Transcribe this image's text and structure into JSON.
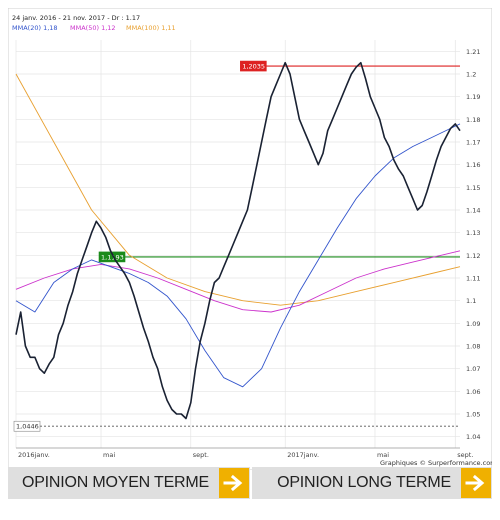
{
  "header": {
    "period": "24 janv. 2016 - 21 nov. 2017 - Dr : 1.17",
    "legend": [
      {
        "text": "MMA(20)  1,18",
        "color": "#3355cc"
      },
      {
        "text": "MMA(50)  1,12",
        "color": "#cc33cc"
      },
      {
        "text": "MMA(100)  1,11",
        "color": "#e8a030"
      }
    ]
  },
  "credit": "Graphiques © Surperformance.com",
  "footer": {
    "medium_term": "OPINION MOYEN TERME",
    "long_term": "OPINION LONG TERME"
  },
  "chart_data": {
    "type": "line",
    "ylim": [
      1.035,
      1.215
    ],
    "y_ticks": [
      1.04,
      1.05,
      1.06,
      1.07,
      1.08,
      1.09,
      1.1,
      1.11,
      1.12,
      1.13,
      1.14,
      1.15,
      1.16,
      1.17,
      1.18,
      1.19,
      1.2,
      1.21
    ],
    "y_tick_labels": [
      "1.04",
      "1.05",
      "1.06",
      "1.07",
      "1.08",
      "1.09",
      "1.1",
      "1.11",
      "1.12",
      "1.13",
      "1.14",
      "1.15",
      "1.16",
      "1.17",
      "1.18",
      "1.19",
      "1.2",
      "1.21"
    ],
    "x_range": [
      0,
      94
    ],
    "x_ticks": [
      0,
      18,
      37,
      57,
      76,
      93
    ],
    "x_tick_labels": [
      "2016janv.",
      "mai",
      "sept.",
      "2017janv.",
      "mai",
      "sept."
    ],
    "hlines": [
      {
        "name": "resistance",
        "value": 1.2035,
        "label": "1,2035",
        "color": "#dd2222"
      },
      {
        "name": "support",
        "value": 1.1193,
        "label": "1,1193",
        "color": "#1a8a1a"
      },
      {
        "name": "low",
        "value": 1.0446,
        "label": "1,0446",
        "color": "#888888"
      }
    ],
    "grid": true,
    "legend_position": "top-left",
    "series": [
      {
        "name": "Cours",
        "color": "#1a2233",
        "x": [
          0,
          1,
          2,
          3,
          4,
          5,
          6,
          7,
          8,
          9,
          10,
          11,
          12,
          13,
          14,
          15,
          16,
          17,
          18,
          19,
          20,
          21,
          22,
          23,
          24,
          25,
          26,
          27,
          28,
          29,
          30,
          31,
          32,
          33,
          34,
          35,
          36,
          37,
          38,
          39,
          40,
          41,
          42,
          43,
          44,
          45,
          46,
          47,
          48,
          49,
          50,
          51,
          52,
          53,
          54,
          55,
          56,
          57,
          58,
          59,
          60,
          61,
          62,
          63,
          64,
          65,
          66,
          67,
          68,
          69,
          70,
          71,
          72,
          73,
          74,
          75,
          76,
          77,
          78,
          79,
          80,
          81,
          82,
          83,
          84,
          85,
          86,
          87,
          88,
          89,
          90,
          91,
          92,
          93,
          94
        ],
        "values": [
          1.085,
          1.095,
          1.08,
          1.075,
          1.075,
          1.07,
          1.068,
          1.072,
          1.075,
          1.085,
          1.09,
          1.098,
          1.104,
          1.112,
          1.118,
          1.124,
          1.13,
          1.135,
          1.132,
          1.128,
          1.122,
          1.118,
          1.115,
          1.112,
          1.108,
          1.102,
          1.095,
          1.088,
          1.082,
          1.075,
          1.07,
          1.062,
          1.056,
          1.052,
          1.05,
          1.05,
          1.048,
          1.055,
          1.07,
          1.082,
          1.09,
          1.1,
          1.108,
          1.11,
          1.115,
          1.12,
          1.125,
          1.13,
          1.135,
          1.14,
          1.15,
          1.16,
          1.17,
          1.18,
          1.19,
          1.195,
          1.2,
          1.205,
          1.2,
          1.19,
          1.18,
          1.175,
          1.17,
          1.165,
          1.16,
          1.165,
          1.175,
          1.18,
          1.185,
          1.19,
          1.195,
          1.2,
          1.203,
          1.205,
          1.198,
          1.19,
          1.185,
          1.18,
          1.172,
          1.168,
          1.162,
          1.158,
          1.155,
          1.15,
          1.145,
          1.14,
          1.142,
          1.148,
          1.155,
          1.162,
          1.168,
          1.172,
          1.176,
          1.178,
          1.175
        ]
      },
      {
        "name": "MMA(20)",
        "color": "#3355cc",
        "x": [
          0,
          4,
          8,
          12,
          16,
          20,
          24,
          28,
          32,
          36,
          40,
          44,
          48,
          52,
          56,
          60,
          64,
          68,
          72,
          76,
          80,
          84,
          88,
          92,
          94
        ],
        "values": [
          1.1,
          1.095,
          1.108,
          1.114,
          1.118,
          1.115,
          1.112,
          1.108,
          1.102,
          1.092,
          1.078,
          1.066,
          1.062,
          1.07,
          1.088,
          1.104,
          1.118,
          1.132,
          1.145,
          1.155,
          1.163,
          1.168,
          1.172,
          1.176,
          1.178
        ]
      },
      {
        "name": "MMA(50)",
        "color": "#cc33cc",
        "x": [
          0,
          6,
          12,
          18,
          24,
          30,
          36,
          42,
          48,
          54,
          60,
          66,
          72,
          78,
          84,
          90,
          94
        ],
        "values": [
          1.105,
          1.11,
          1.114,
          1.116,
          1.114,
          1.11,
          1.105,
          1.1,
          1.096,
          1.095,
          1.098,
          1.104,
          1.11,
          1.114,
          1.117,
          1.12,
          1.122
        ]
      },
      {
        "name": "MMA(100)",
        "color": "#e8a030",
        "x": [
          0,
          8,
          16,
          24,
          32,
          40,
          48,
          56,
          64,
          72,
          80,
          88,
          94
        ],
        "values": [
          1.2,
          1.17,
          1.14,
          1.12,
          1.11,
          1.104,
          1.1,
          1.098,
          1.1,
          1.104,
          1.108,
          1.112,
          1.115
        ]
      }
    ]
  }
}
